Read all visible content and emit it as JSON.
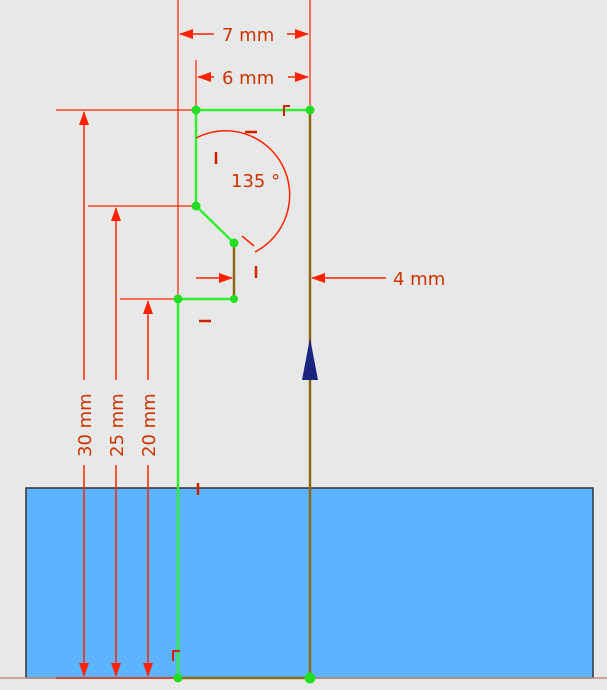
{
  "dimensions": {
    "width_7": "7 mm",
    "width_6": "6 mm",
    "gap_4": "4 mm",
    "height_30": "30 mm",
    "height_25": "25 mm",
    "height_20": "20 mm",
    "angle_135": "135 °"
  },
  "colors": {
    "background": "#e8e8e8",
    "sketch_line": "#33ee33",
    "sketch_point": "#22dd22",
    "dimension": "#ff2200",
    "dimension_text": "#cc3300",
    "body_fill": "#5cb3ff",
    "body_edge": "#333333",
    "axis_line": "#8b6914",
    "arrow": "#1a237e"
  }
}
